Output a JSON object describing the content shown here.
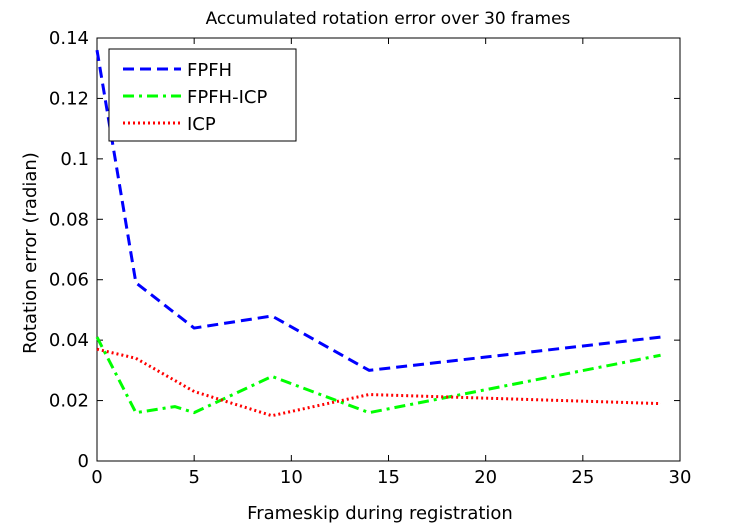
{
  "chart_data": {
    "type": "line",
    "title": "Accumulated rotation error over 30 frames",
    "xlabel": "Frameskip during registration",
    "ylabel": "Rotation error (radian)",
    "xlim": [
      0,
      30
    ],
    "ylim": [
      0,
      0.14
    ],
    "xticks": [
      0,
      5,
      10,
      15,
      20,
      25,
      30
    ],
    "xtick_labels": [
      "0",
      "5",
      "10",
      "15",
      "20",
      "25",
      "30"
    ],
    "yticks": [
      0,
      0.02,
      0.04,
      0.06,
      0.08,
      0.1,
      0.12,
      0.14
    ],
    "ytick_labels": [
      "0",
      "0.02",
      "0.04",
      "0.06",
      "0.08",
      "0.1",
      "0.12",
      "0.14"
    ],
    "grid": false,
    "legend_position": "top-left",
    "series": [
      {
        "name": "FPFH",
        "color": "#0000ff",
        "style": "dashed",
        "x": [
          0,
          2,
          5,
          9,
          14,
          29
        ],
        "y": [
          0.136,
          0.059,
          0.044,
          0.048,
          0.03,
          0.041
        ]
      },
      {
        "name": "FPFH-ICP",
        "color": "#00ff00",
        "style": "dash-dot",
        "x": [
          0,
          2,
          4,
          5,
          9,
          14,
          29
        ],
        "y": [
          0.041,
          0.016,
          0.018,
          0.016,
          0.028,
          0.016,
          0.035
        ]
      },
      {
        "name": "ICP",
        "color": "#ff0000",
        "style": "dotted",
        "x": [
          0,
          2,
          5,
          9,
          14,
          29
        ],
        "y": [
          0.037,
          0.034,
          0.023,
          0.015,
          0.022,
          0.019
        ]
      }
    ]
  }
}
